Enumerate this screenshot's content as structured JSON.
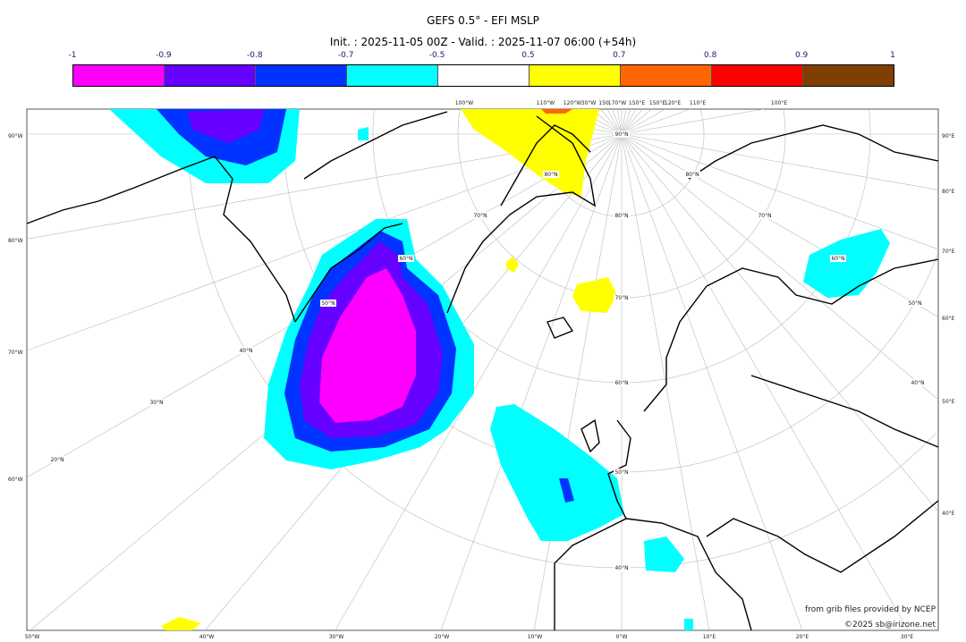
{
  "title": "GEFS 0.5° - EFI MSLP",
  "subtitle": "Init. : 2025-11-05 00Z - Valid. : 2025-11-07 06:00 (+54h)",
  "colorbar": {
    "ticks": [
      "-1",
      "-0.9",
      "-0.8",
      "-0.7",
      "-0.5",
      "0.5",
      "0.7",
      "0.8",
      "0.9",
      "1"
    ],
    "colors": [
      "#ff00ff",
      "#6600ff",
      "#0033ff",
      "#00ffff",
      "#ffffff",
      "#ffff00",
      "#ff6600",
      "#ff0000",
      "#7f3f00"
    ]
  },
  "axes": {
    "left": [
      "90°W",
      "80°W",
      "70°W",
      "60°W"
    ],
    "right": [
      "90°E",
      "80°E",
      "70°E",
      "60°E",
      "50°E",
      "40°E"
    ],
    "bottom": [
      "50°W",
      "40°W",
      "30°W",
      "20°W",
      "10°W",
      "0°W",
      "10°E",
      "20°E",
      "30°E"
    ],
    "top": [
      "100°W",
      "110°W",
      "120°W",
      "30°W",
      "150",
      "170°W",
      "150°E",
      "150°E",
      "120°E",
      "110°E",
      "100°E"
    ]
  },
  "grid_labels": [
    "90°N",
    "80°N",
    "70°N",
    "60°N",
    "50°N",
    "40°N",
    "70°N",
    "80°N",
    "60°N",
    "50°N",
    "40°N",
    "30°N",
    "20°N",
    "80°N",
    "70°N",
    "60°N",
    "50°N",
    "40°N"
  ],
  "credits": {
    "source": "from grib files provided by NCEP",
    "copyright": "©2025 sb@irizone.net"
  }
}
